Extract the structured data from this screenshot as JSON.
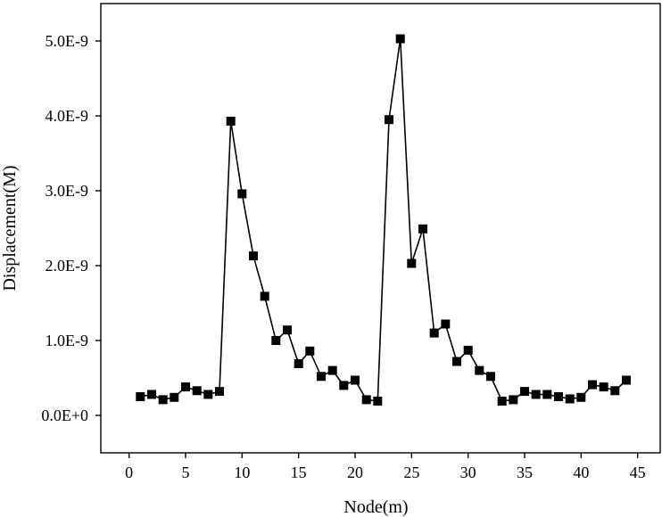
{
  "chart_data": {
    "type": "line",
    "title": "",
    "xlabel": "Node(m)",
    "ylabel": "Displacement(M)",
    "xlim": [
      -2.5,
      47
    ],
    "ylim": [
      -5e-10,
      5.5e-09
    ],
    "x_ticks": [
      0,
      5,
      10,
      15,
      20,
      25,
      30,
      35,
      40,
      45
    ],
    "x_tick_labels": [
      "0",
      "5",
      "10",
      "15",
      "20",
      "25",
      "30",
      "35",
      "40",
      "45"
    ],
    "y_ticks": [
      0,
      1e-09,
      2e-09,
      3e-09,
      4e-09,
      5e-09
    ],
    "y_tick_labels": [
      "0.0E+0",
      "1.0E-9",
      "2.0E-9",
      "3.0E-9",
      "4.0E-9",
      "5.0E-9"
    ],
    "grid": false,
    "legend": "none",
    "marker": "square",
    "color": "#000000",
    "series": [
      {
        "x": [
          1,
          2,
          3,
          4,
          5,
          6,
          7,
          8,
          9,
          10,
          11,
          12,
          13,
          14,
          15,
          16,
          17,
          18,
          19,
          20,
          21,
          22,
          23,
          24,
          25,
          26,
          27,
          28,
          29,
          30,
          31,
          32,
          33,
          34,
          35,
          36,
          37,
          38,
          39,
          40,
          41,
          42,
          43,
          44
        ],
        "values": [
          2.5e-10,
          2.8e-10,
          2.1e-10,
          2.4e-10,
          3.8e-10,
          3.3e-10,
          2.8e-10,
          3.2e-10,
          3.93e-09,
          2.96e-09,
          2.13e-09,
          1.59e-09,
          1e-09,
          1.14e-09,
          6.9e-10,
          8.6e-10,
          5.2e-10,
          6e-10,
          4e-10,
          4.7e-10,
          2.1e-10,
          1.9e-10,
          3.95e-09,
          5.03e-09,
          2.03e-09,
          2.49e-09,
          1.1e-09,
          1.22e-09,
          7.2e-10,
          8.7e-10,
          6e-10,
          5.2e-10,
          1.9e-10,
          2.1e-10,
          3.2e-10,
          2.8e-10,
          2.8e-10,
          2.5e-10,
          2.2e-10,
          2.4e-10,
          4.1e-10,
          3.8e-10,
          3.3e-10,
          4.7e-10
        ]
      }
    ]
  }
}
